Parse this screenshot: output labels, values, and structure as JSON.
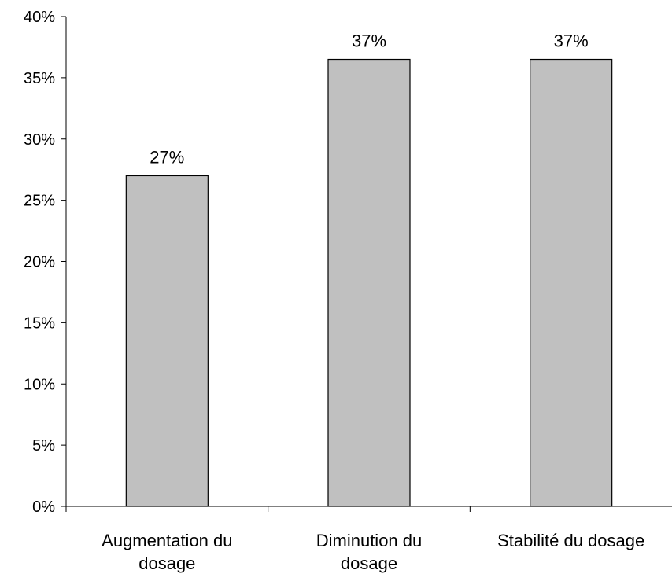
{
  "chart_data": {
    "type": "bar",
    "categories": [
      [
        "Augmentation du",
        "dosage"
      ],
      [
        "Diminution du",
        "dosage"
      ],
      [
        "Stabilité du dosage"
      ]
    ],
    "values": [
      27,
      36.5,
      36.5
    ],
    "data_labels": [
      "27%",
      "37%",
      "37%"
    ],
    "ylim": [
      0,
      40
    ],
    "yticks": [
      0,
      5,
      10,
      15,
      20,
      25,
      30,
      35,
      40
    ],
    "ytick_labels": [
      "0%",
      "5%",
      "10%",
      "15%",
      "20%",
      "25%",
      "30%",
      "35%",
      "40%"
    ],
    "title": "",
    "xlabel": "",
    "ylabel": "",
    "grid": false,
    "bar_color": "#c0c0c0",
    "bar_edge_color": "#000000"
  }
}
